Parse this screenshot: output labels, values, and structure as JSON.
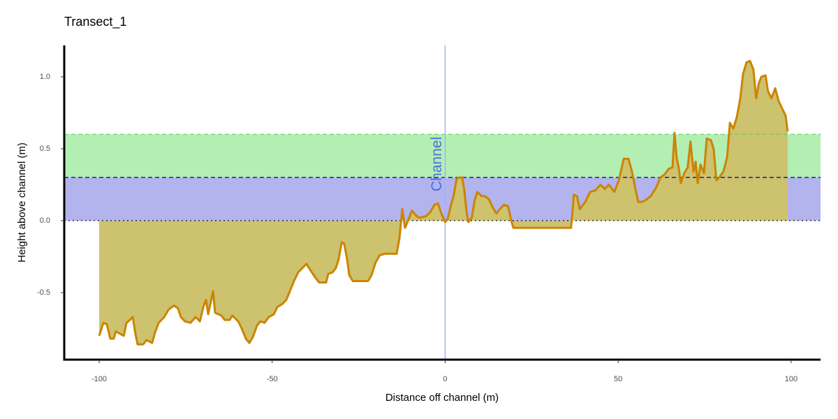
{
  "chart_data": {
    "type": "area-line",
    "title": "Transect_1",
    "x_label": "Distance off channel (m)",
    "y_label": "Height above channel (m)",
    "xlim": [
      -110.1,
      108.5
    ],
    "ylim": [
      -0.966,
      1.218
    ],
    "xticks": [
      -100,
      -50,
      0,
      50,
      100
    ],
    "yticks": [
      -0.5,
      {
        "value": 0,
        "label": "0.0"
      },
      0.5,
      {
        "value": 1,
        "label": "1.0"
      }
    ],
    "bands": [
      {
        "ymin": 0,
        "ymax": 0.3,
        "color": "#b3b3ee"
      },
      {
        "ymin": 0.3,
        "ymax": 0.6,
        "color": "#b3efb3"
      }
    ],
    "hlines": [
      {
        "y": 0,
        "color": "#000000",
        "dash": "2,4"
      },
      {
        "y": 0.3,
        "color": "#00008b",
        "dash": "6,4"
      },
      {
        "y": 0.6,
        "color": "#66cc66",
        "dash": "6,4"
      }
    ],
    "vline": {
      "x": 0,
      "label": "Channel",
      "color": "#9fb0ff",
      "label_color": "#4a6ee0"
    },
    "x": [
      -100,
      -98.8,
      -97.8,
      -96.8,
      -95.8,
      -95.2,
      -93.7,
      -92.9,
      -92.1,
      -91.1,
      -90.3,
      -89.5,
      -88.9,
      -87.3,
      -86.3,
      -84.7,
      -83.9,
      -82.8,
      -81.2,
      -80.0,
      -78.4,
      -77.2,
      -76.4,
      -75.2,
      -73.6,
      -72.1,
      -70.9,
      -69.9,
      -69.1,
      -68.5,
      -67.7,
      -67.1,
      -66.5,
      -64.7,
      -63.7,
      -62.3,
      -61.5,
      -59.8,
      -58.8,
      -57.6,
      -56.6,
      -55.6,
      -54.4,
      -53.4,
      -52.2,
      -51.0,
      -49.5,
      -48.5,
      -47.1,
      -45.9,
      -44.7,
      -43.7,
      -42.5,
      -41.3,
      -40.1,
      -38.8,
      -37.4,
      -36.4,
      -34.4,
      -33.8,
      -32.6,
      -31.6,
      -30.8,
      -29.9,
      -29.2,
      -28.4,
      -27.7,
      -26.7,
      -24.7,
      -22.3,
      -21.3,
      -20.1,
      -18.9,
      -17.3,
      -14.0,
      -13.2,
      -12.4,
      -11.6,
      -10.4,
      -9.6,
      -8.6,
      -7.6,
      -5.6,
      -4.3,
      -3.1,
      -2.1,
      -1.1,
      0,
      0.7,
      1.5,
      2.5,
      3.3,
      4.1,
      4.9,
      5.5,
      6.1,
      6.7,
      7.7,
      8.5,
      9.3,
      10.5,
      11.5,
      12.6,
      13.8,
      14.8,
      15.8,
      17.0,
      18.2,
      19.1,
      19.7,
      24.7,
      30.8,
      36.4,
      37.2,
      38.1,
      38.9,
      40.5,
      41.9,
      43.4,
      44.9,
      46.1,
      47.3,
      48.9,
      50.2,
      51.6,
      53.0,
      54.0,
      55.0,
      55.8,
      56.8,
      57.8,
      59.4,
      61.0,
      62.2,
      63.4,
      64.6,
      65.7,
      66.3,
      66.9,
      67.5,
      68.1,
      69.1,
      70.1,
      70.9,
      71.8,
      72.4,
      73.0,
      73.8,
      74.8,
      75.6,
      76.8,
      77.6,
      78.4,
      79.2,
      80.4,
      81.5,
      82.3,
      83.3,
      84.3,
      85.3,
      86.1,
      87.1,
      88.1,
      89.1,
      89.9,
      90.6,
      91.4,
      92.6,
      93.3,
      94.3,
      95.4,
      96.4,
      97.4,
      98.4,
      99.0
    ],
    "series": [
      {
        "line_color": "#cc8400",
        "color": "#cdc26e",
        "values": [
          -0.8,
          -0.71,
          -0.72,
          -0.82,
          -0.82,
          -0.77,
          -0.79,
          -0.8,
          -0.71,
          -0.69,
          -0.67,
          -0.79,
          -0.86,
          -0.86,
          -0.83,
          -0.85,
          -0.78,
          -0.71,
          -0.67,
          -0.62,
          -0.59,
          -0.61,
          -0.67,
          -0.7,
          -0.71,
          -0.67,
          -0.7,
          -0.6,
          -0.55,
          -0.65,
          -0.56,
          -0.49,
          -0.64,
          -0.66,
          -0.69,
          -0.69,
          -0.66,
          -0.7,
          -0.75,
          -0.82,
          -0.85,
          -0.81,
          -0.73,
          -0.7,
          -0.71,
          -0.67,
          -0.65,
          -0.6,
          -0.58,
          -0.55,
          -0.48,
          -0.42,
          -0.36,
          -0.33,
          -0.3,
          -0.35,
          -0.4,
          -0.43,
          -0.43,
          -0.37,
          -0.36,
          -0.33,
          -0.27,
          -0.15,
          -0.16,
          -0.26,
          -0.38,
          -0.42,
          -0.42,
          -0.42,
          -0.38,
          -0.29,
          -0.24,
          -0.23,
          -0.23,
          -0.12,
          0.08,
          -0.05,
          0.02,
          0.07,
          0.04,
          0.02,
          0.03,
          0.06,
          0.11,
          0.12,
          0.05,
          -0.01,
          0.01,
          0.09,
          0.18,
          0.29,
          0.3,
          0.3,
          0.22,
          0.08,
          -0.01,
          0.02,
          0.14,
          0.2,
          0.17,
          0.17,
          0.15,
          0.09,
          0.05,
          0.08,
          0.11,
          0.1,
          0.0,
          -0.05,
          -0.05,
          -0.05,
          -0.05,
          0.18,
          0.17,
          0.08,
          0.13,
          0.2,
          0.21,
          0.25,
          0.22,
          0.25,
          0.2,
          0.28,
          0.43,
          0.43,
          0.34,
          0.22,
          0.13,
          0.13,
          0.14,
          0.17,
          0.23,
          0.3,
          0.32,
          0.36,
          0.37,
          0.61,
          0.44,
          0.37,
          0.26,
          0.33,
          0.37,
          0.55,
          0.34,
          0.41,
          0.26,
          0.39,
          0.33,
          0.57,
          0.56,
          0.5,
          0.28,
          0.3,
          0.34,
          0.44,
          0.68,
          0.64,
          0.72,
          0.85,
          1.02,
          1.1,
          1.11,
          1.05,
          0.85,
          0.95,
          1.0,
          1.01,
          0.9,
          0.85,
          0.92,
          0.83,
          0.78,
          0.73,
          0.62
        ]
      }
    ]
  }
}
